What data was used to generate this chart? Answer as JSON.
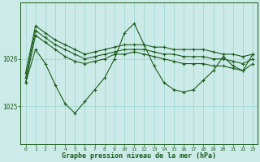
{
  "bg_color": "#cceae8",
  "grid_color": "#99d5d0",
  "line_color": "#1a5c1a",
  "marker_color": "#1a5c1a",
  "xlabel": "Graphe pression niveau de la mer (hPa)",
  "xlabel_color": "#1a5c1a",
  "yticks": [
    1025,
    1026
  ],
  "ylim": [
    1024.2,
    1027.2
  ],
  "xlim": [
    -0.5,
    23.5
  ],
  "xticks": [
    0,
    1,
    2,
    3,
    4,
    5,
    6,
    7,
    8,
    9,
    10,
    11,
    12,
    13,
    14,
    15,
    16,
    17,
    18,
    19,
    20,
    21,
    22,
    23
  ],
  "series": [
    {
      "x": [
        0,
        1,
        2,
        3,
        4,
        5,
        6,
        7,
        8,
        9,
        10,
        11,
        12,
        13,
        14,
        15,
        16,
        17,
        18,
        19,
        20,
        21,
        22,
        23
      ],
      "y": [
        1025.7,
        1026.7,
        1026.55,
        1026.4,
        1026.3,
        1026.2,
        1026.1,
        1026.15,
        1026.2,
        1026.25,
        1026.3,
        1026.3,
        1026.3,
        1026.25,
        1026.25,
        1026.2,
        1026.2,
        1026.2,
        1026.2,
        1026.15,
        1026.1,
        1026.1,
        1026.05,
        1026.1
      ]
    },
    {
      "x": [
        0,
        1,
        2,
        3,
        4,
        5,
        6,
        7,
        8,
        9,
        10,
        11,
        12,
        13,
        14,
        15,
        16,
        17,
        18,
        19,
        20,
        21,
        22,
        23
      ],
      "y": [
        1025.6,
        1026.6,
        1026.45,
        1026.3,
        1026.2,
        1026.1,
        1026.0,
        1026.05,
        1026.1,
        1026.15,
        1026.2,
        1026.2,
        1026.2,
        1026.15,
        1026.1,
        1026.1,
        1026.05,
        1026.05,
        1026.05,
        1026.0,
        1026.0,
        1025.95,
        1025.9,
        1026.0
      ]
    },
    {
      "x": [
        0,
        1,
        2,
        3,
        4,
        5,
        6,
        7,
        8,
        9,
        10,
        11,
        12,
        13,
        14,
        15,
        16,
        17,
        18,
        19,
        20,
        21,
        22,
        23
      ],
      "y": [
        1025.5,
        1026.5,
        1026.35,
        1026.2,
        1026.05,
        1025.95,
        1025.9,
        1025.95,
        1026.0,
        1026.1,
        1026.1,
        1026.15,
        1026.1,
        1026.05,
        1026.0,
        1025.95,
        1025.9,
        1025.9,
        1025.9,
        1025.85,
        1025.85,
        1025.8,
        1025.75,
        1025.9
      ]
    },
    {
      "x": [
        0,
        1,
        2,
        3,
        4,
        5,
        6,
        7,
        8,
        9,
        10,
        11,
        12,
        13,
        14,
        15,
        16,
        17,
        18,
        19,
        20,
        21,
        22,
        23
      ],
      "y": [
        1025.5,
        1026.2,
        1025.9,
        1025.45,
        1025.05,
        1024.85,
        1025.1,
        1025.35,
        1025.6,
        1026.0,
        1026.55,
        1026.75,
        1026.3,
        1025.85,
        1025.5,
        1025.35,
        1025.3,
        1025.35,
        1025.55,
        1025.75,
        1026.05,
        1025.85,
        1025.75,
        1026.1
      ]
    }
  ]
}
